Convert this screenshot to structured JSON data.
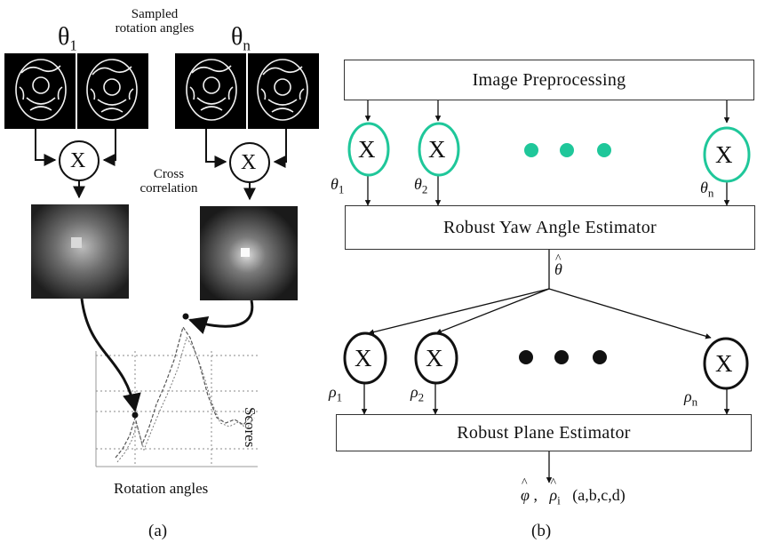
{
  "panel_a": {
    "sampled_label_line1": "Sampled",
    "sampled_label_line2": "rotation angles",
    "theta_1": "θ",
    "theta_1_sub": "1",
    "theta_n": "θ",
    "theta_n_sub": "n",
    "multiply_symbol_1": "X",
    "multiply_symbol_2": "X",
    "cross_label_line1": "Cross",
    "cross_label_line2": "correlation",
    "scores_label": "Scores",
    "rotation_angles_label": "Rotation angles",
    "caption": "(a)"
  },
  "panel_b": {
    "preprocessing_label": "Image Preprocessing",
    "yaw_estimator_label": "Robust Yaw Angle Estimator",
    "plane_estimator_label": "Robust Plane Estimator",
    "top_nodes": [
      {
        "symbol": "X",
        "angle": "θ",
        "sub": "1"
      },
      {
        "symbol": "X",
        "angle": "θ",
        "sub": "2"
      },
      {
        "symbol": "X",
        "angle": "θ",
        "sub": "n"
      }
    ],
    "theta_hat": "θ",
    "bottom_nodes": [
      {
        "symbol": "X",
        "angle": "ρ",
        "sub": "1"
      },
      {
        "symbol": "X",
        "angle": "ρ",
        "sub": "2"
      },
      {
        "symbol": "X",
        "angle": "ρ",
        "sub": "n"
      }
    ],
    "output_phi": "φ",
    "output_rho": "ρ",
    "output_rho_sub": "i",
    "output_params": "(a,b,c,d)",
    "caption": "(b)"
  },
  "colors": {
    "accent_teal": "#1fc79a",
    "dark": "#111111",
    "image_bg": "#000000"
  },
  "icons": [
    "multiply-node-icon",
    "ellipsis-dots-icon",
    "arrow-icon"
  ]
}
